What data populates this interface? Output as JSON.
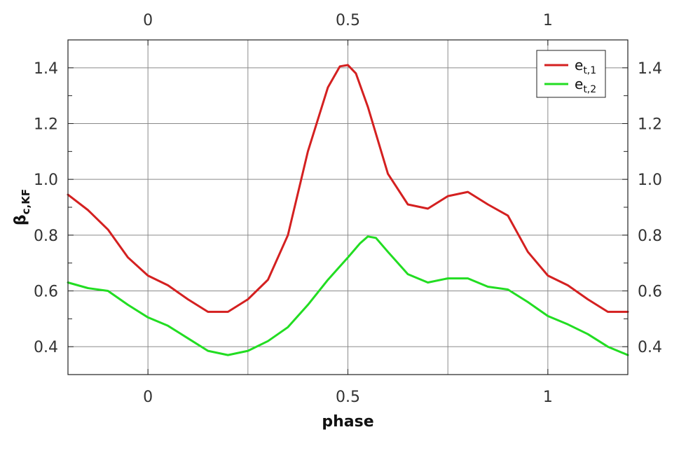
{
  "chart_data": {
    "type": "line",
    "xlabel": "phase",
    "ylabel": {
      "base": "β",
      "sub": "c,KF"
    },
    "xlim": [
      -0.2,
      1.2
    ],
    "ylim": [
      0.3,
      1.5
    ],
    "xticks": [
      0,
      0.5,
      1
    ],
    "xtick_labels": [
      "0",
      "0.5",
      "1"
    ],
    "yticks": [
      0.4,
      0.6,
      0.8,
      1.0,
      1.2,
      1.4
    ],
    "ytick_labels": [
      "0.4",
      "0.6",
      "0.8",
      "1.0",
      "1.2",
      "1.4"
    ],
    "grid": true,
    "legend_position": "top-right",
    "series": [
      {
        "name": "e_{t,1}",
        "label_base": "e",
        "label_sub": "t,1",
        "color": "#d42020",
        "x": [
          -0.2,
          -0.15,
          -0.1,
          -0.05,
          0.0,
          0.05,
          0.1,
          0.15,
          0.2,
          0.25,
          0.3,
          0.35,
          0.4,
          0.45,
          0.48,
          0.5,
          0.52,
          0.55,
          0.6,
          0.65,
          0.7,
          0.75,
          0.8,
          0.85,
          0.9,
          0.95,
          1.0,
          1.05,
          1.1,
          1.15,
          1.2
        ],
        "y": [
          0.945,
          0.89,
          0.82,
          0.72,
          0.655,
          0.62,
          0.57,
          0.525,
          0.525,
          0.57,
          0.64,
          0.8,
          1.1,
          1.33,
          1.405,
          1.41,
          1.38,
          1.26,
          1.02,
          0.91,
          0.895,
          0.94,
          0.955,
          0.91,
          0.87,
          0.74,
          0.655,
          0.62,
          0.57,
          0.525,
          0.525
        ]
      },
      {
        "name": "e_{t,2}",
        "label_base": "e",
        "label_sub": "t,2",
        "color": "#22dd22",
        "x": [
          -0.2,
          -0.15,
          -0.1,
          -0.05,
          0.0,
          0.05,
          0.1,
          0.15,
          0.2,
          0.25,
          0.3,
          0.35,
          0.4,
          0.45,
          0.5,
          0.53,
          0.55,
          0.57,
          0.6,
          0.65,
          0.7,
          0.75,
          0.8,
          0.85,
          0.9,
          0.95,
          1.0,
          1.05,
          1.1,
          1.15,
          1.2
        ],
        "y": [
          0.63,
          0.61,
          0.6,
          0.55,
          0.505,
          0.475,
          0.43,
          0.385,
          0.37,
          0.385,
          0.42,
          0.47,
          0.55,
          0.64,
          0.72,
          0.77,
          0.795,
          0.79,
          0.74,
          0.66,
          0.63,
          0.645,
          0.645,
          0.615,
          0.605,
          0.56,
          0.51,
          0.48,
          0.445,
          0.4,
          0.37
        ]
      }
    ]
  }
}
